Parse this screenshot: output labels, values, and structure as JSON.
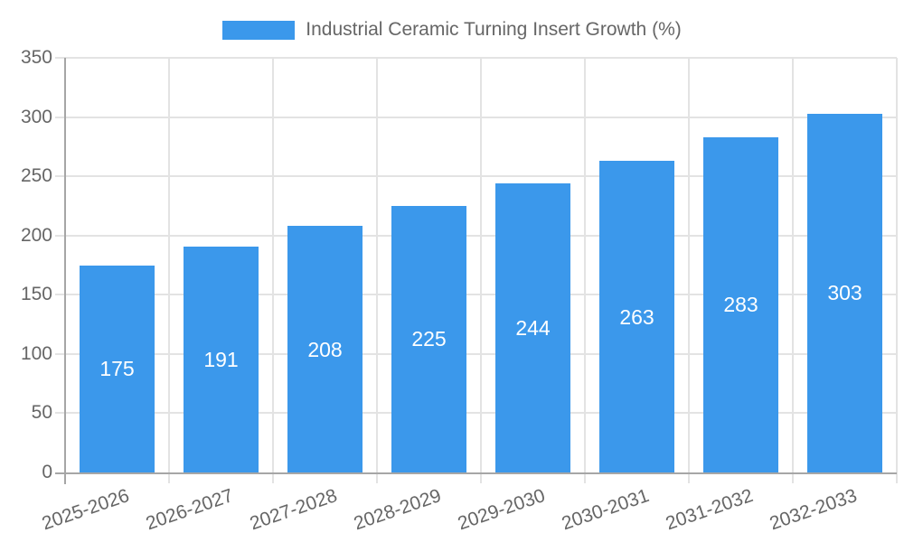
{
  "legend": {
    "label": "Industrial Ceramic Turning Insert Growth (%)"
  },
  "chart_data": {
    "type": "bar",
    "title": "Industrial Ceramic Turning Insert Growth (%)",
    "categories": [
      "2025-2026",
      "2026-2027",
      "2027-2028",
      "2028-2029",
      "2029-2030",
      "2030-2031",
      "2031-2032",
      "2032-2033"
    ],
    "values": [
      175,
      191,
      208,
      225,
      244,
      263,
      283,
      303
    ],
    "xlabel": "",
    "ylabel": "",
    "ylim": [
      0,
      350
    ],
    "ytick_step": 50,
    "yticks": [
      0,
      50,
      100,
      150,
      200,
      250,
      300,
      350
    ],
    "grid": true,
    "legend_position": "top",
    "bar_labels_inside": true,
    "x_tick_rotation_deg": -19,
    "colors": {
      "bar": "#3b98eb",
      "bar_label": "#ffffff",
      "axis_text": "#666666",
      "grid_line": "#e3e3e3",
      "axis_line": "#a6a6a6",
      "background": "#ffffff"
    }
  }
}
